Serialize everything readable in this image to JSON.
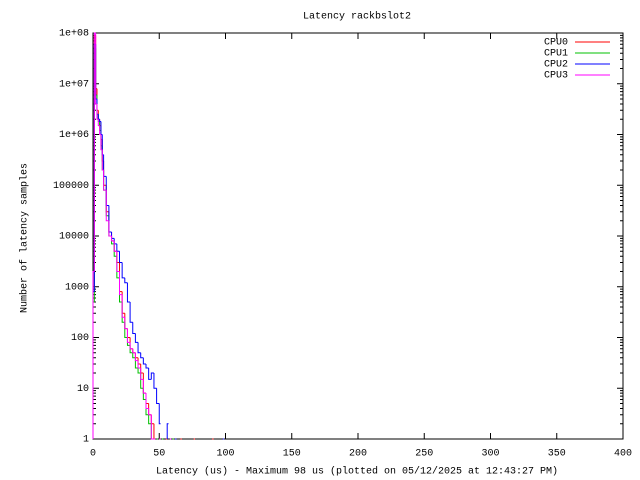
{
  "chart_data": {
    "type": "step",
    "title": "Latency rackbslot2",
    "xlabel": "Latency (us) - Maximum 98 us (plotted on 05/12/2025 at 12:43:27 PM)",
    "ylabel": "Number of latency samples",
    "xlim": [
      0,
      400
    ],
    "xticks": [
      0,
      50,
      100,
      150,
      200,
      250,
      300,
      350,
      400
    ],
    "ylim": [
      1,
      100000000
    ],
    "log_y": true,
    "grid": false,
    "legend": "top-right",
    "yticks": [
      {
        "value": 1,
        "label": "1"
      },
      {
        "value": 10,
        "label": "10"
      },
      {
        "value": 100,
        "label": "100"
      },
      {
        "value": 1000,
        "label": "1000"
      },
      {
        "value": 10000,
        "label": "10000"
      },
      {
        "value": 100000,
        "label": "100000"
      },
      {
        "value": 1000000,
        "label": "1e+06"
      },
      {
        "value": 10000000,
        "label": "1e+07"
      },
      {
        "value": 100000000,
        "label": "1e+08"
      }
    ],
    "series": [
      {
        "name": "CPU0",
        "color": "#ff0000",
        "x": [
          0,
          1,
          2,
          3,
          4,
          5,
          6,
          7,
          8,
          10,
          12,
          14,
          16,
          18,
          20,
          22,
          24,
          26,
          28,
          30,
          32,
          34,
          36,
          38,
          40,
          42,
          44,
          46,
          50,
          55,
          66,
          76,
          90
        ],
        "values": [
          1000,
          90000000,
          8000000,
          3000000,
          2000000,
          1500000,
          800000,
          300000,
          100000,
          30000,
          12000,
          8000,
          5000,
          3000,
          800,
          300,
          150,
          100,
          60,
          50,
          40,
          30,
          20,
          8,
          5,
          3,
          2,
          1,
          1,
          1,
          1,
          1,
          1
        ]
      },
      {
        "name": "CPU1",
        "color": "#00c000",
        "x": [
          0,
          1,
          2,
          3,
          4,
          5,
          6,
          7,
          8,
          10,
          12,
          14,
          16,
          18,
          20,
          22,
          24,
          26,
          28,
          30,
          32,
          34,
          36,
          38,
          40,
          42,
          44,
          48,
          52,
          60
        ],
        "values": [
          500,
          50000000,
          6000000,
          2500000,
          1800000,
          1200000,
          600000,
          200000,
          80000,
          25000,
          10000,
          7000,
          4000,
          1500,
          500,
          200,
          100,
          70,
          50,
          40,
          25,
          20,
          10,
          6,
          3,
          2,
          1,
          1,
          1,
          1
        ]
      },
      {
        "name": "CPU2",
        "color": "#0000ff",
        "x": [
          0,
          1,
          2,
          3,
          4,
          5,
          6,
          7,
          8,
          10,
          12,
          14,
          16,
          18,
          20,
          22,
          24,
          26,
          28,
          30,
          32,
          34,
          36,
          38,
          40,
          42,
          44,
          46,
          48,
          50,
          56,
          62,
          98
        ],
        "values": [
          800,
          60000000,
          5000000,
          2500000,
          2000000,
          1800000,
          1000000,
          400000,
          150000,
          40000,
          12000,
          9000,
          7000,
          5000,
          3000,
          1500,
          1200,
          500,
          200,
          120,
          80,
          50,
          40,
          30,
          25,
          15,
          20,
          10,
          5,
          2,
          2,
          1,
          1
        ]
      },
      {
        "name": "CPU3",
        "color": "#ff00ff",
        "x": [
          0,
          1,
          2,
          3,
          4,
          5,
          6,
          7,
          8,
          10,
          12,
          14,
          16,
          18,
          20,
          22,
          24,
          26,
          28,
          30,
          32,
          34,
          36,
          38,
          40,
          42,
          44,
          46,
          50,
          58
        ],
        "values": [
          2000,
          100000000,
          4000000,
          2000000,
          1500000,
          1000000,
          500000,
          200000,
          80000,
          20000,
          10000,
          8000,
          5000,
          2000,
          700,
          250,
          150,
          80,
          60,
          50,
          35,
          25,
          15,
          8,
          4,
          3,
          1,
          1,
          1,
          1
        ]
      }
    ]
  }
}
